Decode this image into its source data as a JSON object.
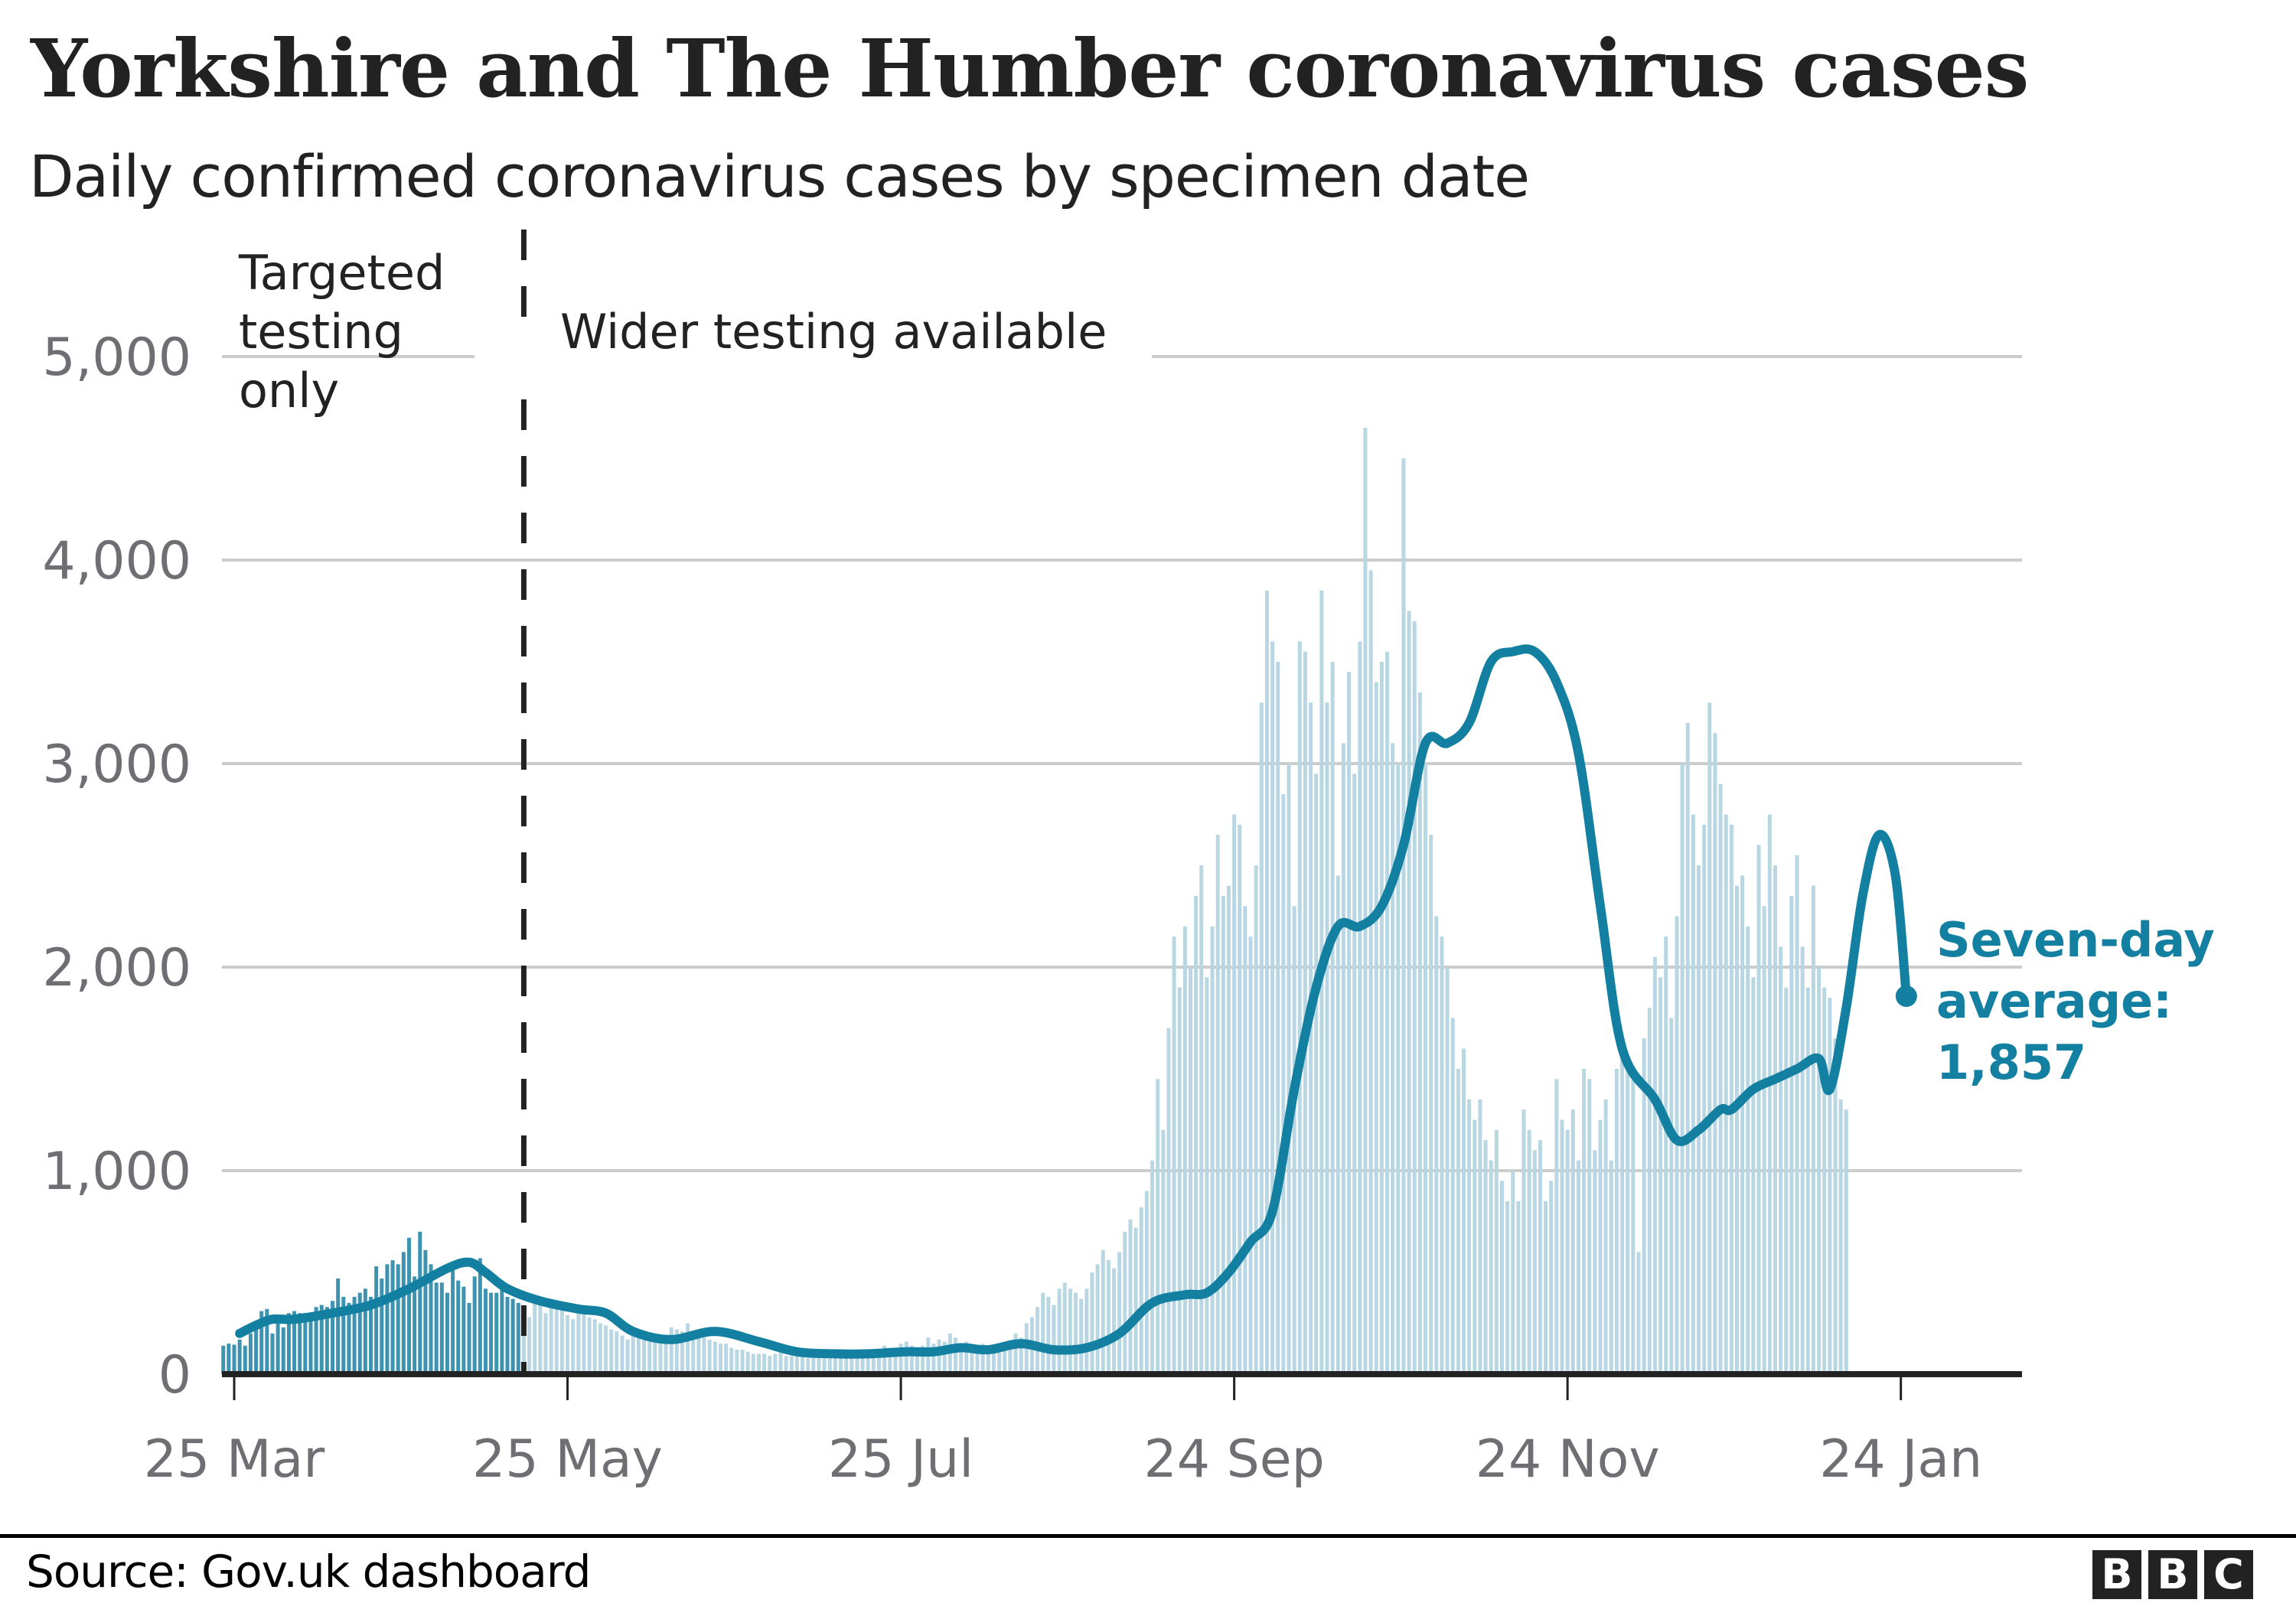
{
  "header": {
    "title": "Yorkshire and The Humber coronavirus cases",
    "subtitle": "Daily confirmed coronavirus cases by specimen date"
  },
  "annotations": {
    "targeted_line1": "Targeted",
    "targeted_line2": "testing",
    "targeted_line3": "only",
    "wider": "Wider testing available",
    "avg_line1": "Seven-day",
    "avg_line2": "average:",
    "avg_value": "1,857"
  },
  "footer": {
    "source": "Source: Gov.uk dashboard",
    "logo_letters": [
      "B",
      "B",
      "C"
    ]
  },
  "colors": {
    "line": "#1380a1",
    "bar_early": "#3e93b1",
    "bar_late": "#b9d7e2",
    "grid": "#cccccc",
    "axis": "#222222"
  },
  "chart_data": {
    "type": "bar",
    "title": "Yorkshire and The Humber coronavirus cases",
    "subtitle": "Daily confirmed coronavirus cases by specimen date",
    "xlabel": "",
    "ylabel": "",
    "ylim": [
      0,
      5000
    ],
    "yticks": [
      0,
      1000,
      2000,
      3000,
      4000,
      5000
    ],
    "ytick_labels": [
      "0",
      "1,000",
      "2,000",
      "3,000",
      "4,000",
      "5,000"
    ],
    "xtick_labels": [
      "25 Mar",
      "25 May",
      "25 Jul",
      "24 Sep",
      "24 Nov",
      "24 Jan"
    ],
    "xtick_day_offsets": [
      0,
      61,
      122,
      183,
      244,
      305
    ],
    "grid": true,
    "legend": "none",
    "start_date": "23 Mar",
    "testing_change_day_offset": 55,
    "series": [
      {
        "name": "Daily cases",
        "type": "bar",
        "values": [
          140,
          150,
          145,
          170,
          140,
          200,
          240,
          310,
          320,
          200,
          270,
          230,
          300,
          310,
          300,
          300,
          260,
          330,
          340,
          330,
          360,
          470,
          380,
          350,
          380,
          400,
          420,
          380,
          530,
          470,
          540,
          560,
          540,
          600,
          670,
          480,
          700,
          610,
          540,
          450,
          450,
          400,
          510,
          460,
          430,
          350,
          480,
          570,
          420,
          400,
          400,
          420,
          380,
          370,
          350,
          330,
          280,
          360,
          380,
          300,
          370,
          340,
          330,
          290,
          270,
          310,
          300,
          280,
          270,
          250,
          240,
          220,
          210,
          190,
          170,
          200,
          190,
          170,
          160,
          170,
          150,
          190,
          230,
          220,
          210,
          250,
          210,
          200,
          180,
          170,
          160,
          150,
          150,
          130,
          120,
          120,
          110,
          100,
          100,
          100,
          90,
          100,
          110,
          90,
          90,
          90,
          100,
          80,
          90,
          80,
          100,
          110,
          90,
          90,
          100,
          110,
          90,
          80,
          100,
          110,
          120,
          140,
          130,
          120,
          150,
          160,
          140,
          130,
          140,
          180,
          150,
          170,
          160,
          200,
          180,
          140,
          160,
          130,
          140,
          150,
          130,
          120,
          110,
          120,
          160,
          200,
          180,
          250,
          280,
          330,
          400,
          380,
          340,
          420,
          450,
          420,
          400,
          370,
          420,
          500,
          540,
          610,
          560,
          520,
          600,
          700,
          760,
          720,
          820,
          900,
          1050,
          1450,
          1200,
          1700,
          2150,
          1900,
          2200,
          2000,
          2350,
          2500,
          1950,
          2200,
          2650,
          2350,
          2400,
          2750,
          2700,
          2300,
          2150,
          2500,
          3300,
          3850,
          3600,
          3500,
          2850,
          3000,
          2300,
          3600,
          3550,
          3300,
          2950,
          3850,
          3300,
          3500,
          2450,
          3100,
          3450,
          2950,
          3600,
          4650,
          3950,
          3400,
          3500,
          3550,
          3100,
          3000,
          4500,
          3750,
          3700,
          3350,
          3000,
          2650,
          2250,
          2150,
          2000,
          1750,
          1500,
          1600,
          1350,
          1250,
          1350,
          1150,
          1050,
          1200,
          950,
          850,
          1000,
          850,
          1300,
          1200,
          1100,
          1150,
          850,
          950,
          1450,
          1250,
          1200,
          1300,
          1050,
          1500,
          1450,
          1100,
          1250,
          1350,
          1050,
          1500,
          1600,
          1550,
          1450,
          600,
          1650,
          1800,
          2050,
          1950,
          2150,
          1750,
          2250,
          3000,
          3200,
          2750,
          2500,
          2700,
          3300,
          3150,
          2900,
          2750,
          2700,
          2400,
          2450,
          2200,
          1950,
          2600,
          2300,
          2750,
          2500,
          2100,
          1900,
          2350,
          2550,
          2100,
          1900,
          2400,
          2000,
          1900,
          1850,
          1650,
          1350,
          1300
        ]
      },
      {
        "name": "Seven-day average",
        "type": "line",
        "x_day_offsets": [
          3,
          6,
          9,
          13,
          20,
          27,
          34,
          41,
          45,
          48,
          52,
          58,
          65,
          70,
          75,
          82,
          90,
          98,
          105,
          112,
          118,
          125,
          130,
          135,
          140,
          146,
          152,
          158,
          164,
          170,
          176,
          180,
          184,
          188,
          192,
          196,
          200,
          204,
          208,
          212,
          216,
          220,
          224,
          228,
          232,
          236,
          240,
          244,
          248,
          252,
          256,
          262,
          266,
          270,
          274,
          276,
          280,
          284,
          288,
          292,
          294,
          297,
          300,
          303,
          306
        ],
        "values": [
          200,
          240,
          270,
          270,
          300,
          340,
          420,
          520,
          550,
          500,
          420,
          360,
          320,
          300,
          210,
          170,
          210,
          160,
          110,
          100,
          100,
          110,
          110,
          130,
          120,
          150,
          120,
          130,
          200,
          350,
          390,
          400,
          500,
          650,
          800,
          1400,
          1900,
          2200,
          2200,
          2300,
          2600,
          3100,
          3100,
          3200,
          3500,
          3550,
          3550,
          3400,
          3050,
          2300,
          1600,
          1350,
          1150,
          1200,
          1300,
          1300,
          1400,
          1450,
          1500,
          1550,
          1400,
          1800,
          2350,
          2650,
          2450
        ]
      },
      {
        "name": "Seven-day average (tail)",
        "type": "line",
        "x_day_offsets": [
          296,
          300,
          304,
          308
        ],
        "values": [
          2600,
          2100,
          1950,
          1857
        ]
      }
    ],
    "annotations": [
      {
        "text": "Targeted testing only",
        "position": "before dashed line"
      },
      {
        "text": "Wider testing available",
        "position": "after dashed line"
      },
      {
        "text": "Seven-day average: 1,857",
        "position": "end of line"
      }
    ]
  }
}
